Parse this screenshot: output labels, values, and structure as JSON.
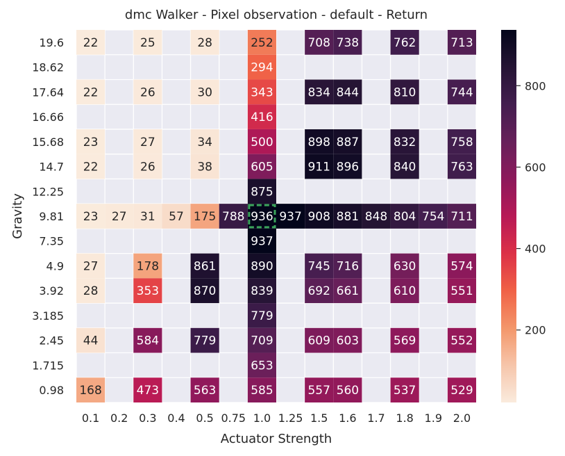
{
  "chart_data": {
    "type": "heatmap",
    "title": "dmc Walker - Pixel observation - default - Return",
    "xlabel": "Actuator Strength",
    "ylabel": "Gravity",
    "x_categories": [
      "0.1",
      "0.2",
      "0.3",
      "0.4",
      "0.5",
      "0.75",
      "1.0",
      "1.25",
      "1.5",
      "1.6",
      "1.7",
      "1.8",
      "1.9",
      "2.0"
    ],
    "y_categories": [
      "19.6",
      "18.62",
      "17.64",
      "16.66",
      "15.68",
      "14.7",
      "12.25",
      "9.81",
      "7.35",
      "4.9",
      "3.92",
      "3.185",
      "2.45",
      "1.715",
      "0.98"
    ],
    "values": [
      [
        22,
        null,
        25,
        null,
        28,
        null,
        252,
        null,
        708,
        738,
        null,
        762,
        null,
        713
      ],
      [
        null,
        null,
        null,
        null,
        null,
        null,
        294,
        null,
        null,
        null,
        null,
        null,
        null,
        null
      ],
      [
        22,
        null,
        26,
        null,
        30,
        null,
        343,
        null,
        834,
        844,
        null,
        810,
        null,
        744
      ],
      [
        null,
        null,
        null,
        null,
        null,
        null,
        416,
        null,
        null,
        null,
        null,
        null,
        null,
        null
      ],
      [
        23,
        null,
        27,
        null,
        34,
        null,
        500,
        null,
        898,
        887,
        null,
        832,
        null,
        758
      ],
      [
        22,
        null,
        26,
        null,
        38,
        null,
        605,
        null,
        911,
        896,
        null,
        840,
        null,
        763
      ],
      [
        null,
        null,
        null,
        null,
        null,
        null,
        875,
        null,
        null,
        null,
        null,
        null,
        null,
        null
      ],
      [
        23,
        27,
        31,
        57,
        175,
        788,
        936,
        937,
        908,
        881,
        848,
        804,
        754,
        711
      ],
      [
        null,
        null,
        null,
        null,
        null,
        null,
        937,
        null,
        null,
        null,
        null,
        null,
        null,
        null
      ],
      [
        27,
        null,
        178,
        null,
        861,
        null,
        890,
        null,
        745,
        716,
        null,
        630,
        null,
        574
      ],
      [
        28,
        null,
        353,
        null,
        870,
        null,
        839,
        null,
        692,
        661,
        null,
        610,
        null,
        551
      ],
      [
        null,
        null,
        null,
        null,
        null,
        null,
        779,
        null,
        null,
        null,
        null,
        null,
        null,
        null
      ],
      [
        44,
        null,
        584,
        null,
        779,
        null,
        709,
        null,
        609,
        603,
        null,
        569,
        null,
        552
      ],
      [
        null,
        null,
        null,
        null,
        null,
        null,
        653,
        null,
        null,
        null,
        null,
        null,
        null,
        null
      ],
      [
        168,
        null,
        473,
        null,
        563,
        null,
        585,
        null,
        557,
        560,
        null,
        537,
        null,
        529
      ]
    ],
    "colorbar": {
      "min": 22,
      "max": 937,
      "ticks": [
        200,
        400,
        600,
        800
      ],
      "colormap": "rocket_r"
    },
    "highlighted_cell": {
      "x": "1.0",
      "y": "9.81",
      "style": "dashed-green"
    },
    "colors": {
      "background": "#eaeaf2",
      "grid": "#ffffff",
      "highlight": "#3aa35a",
      "text_dark": "#262626"
    }
  }
}
